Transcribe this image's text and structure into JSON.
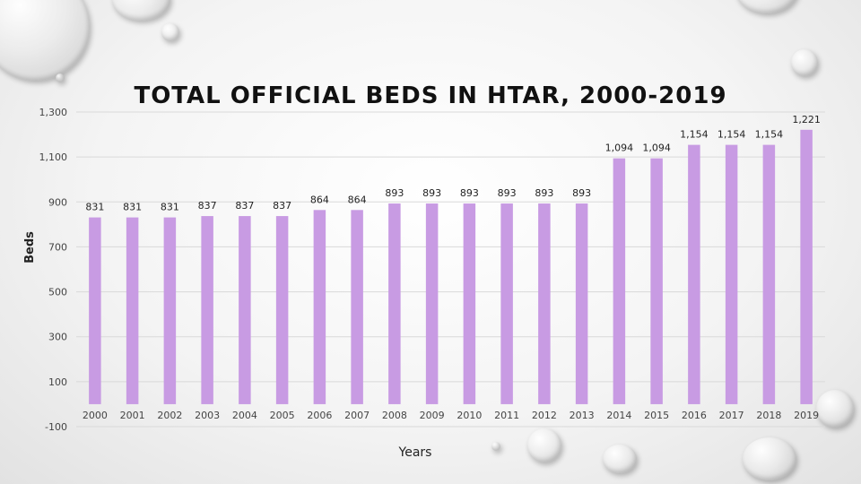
{
  "slide": {
    "title": "TOTAL OFFICIAL BEDS IN HTAR, 2000-2019"
  },
  "chart_data": {
    "type": "bar",
    "title": "TOTAL OFFICIAL BEDS IN HTAR, 2000-2019",
    "xlabel": "Years",
    "ylabel": "Beds",
    "categories": [
      "2000",
      "2001",
      "2002",
      "2003",
      "2004",
      "2005",
      "2006",
      "2007",
      "2008",
      "2009",
      "2010",
      "2011",
      "2012",
      "2013",
      "2014",
      "2015",
      "2016",
      "2017",
      "2018",
      "2019"
    ],
    "values": [
      831,
      831,
      831,
      837,
      837,
      837,
      864,
      864,
      893,
      893,
      893,
      893,
      893,
      893,
      1094,
      1094,
      1154,
      1154,
      1154,
      1221
    ],
    "data_labels": [
      "831",
      "831",
      "831",
      "837",
      "837",
      "837",
      "864",
      "864",
      "893",
      "893",
      "893",
      "893",
      "893",
      "893",
      "1,094",
      "1,094",
      "1,154",
      "1,154",
      "1,154",
      "1,221"
    ],
    "yticks": [
      -100,
      100,
      300,
      500,
      700,
      900,
      1100,
      1300
    ],
    "ytick_labels": [
      "-100",
      "100",
      "300",
      "500",
      "700",
      "900",
      "1,100",
      "1,300"
    ],
    "ylim": [
      -100,
      1300
    ],
    "grid": true,
    "bar_color": "#c89be3",
    "legend": "none"
  }
}
